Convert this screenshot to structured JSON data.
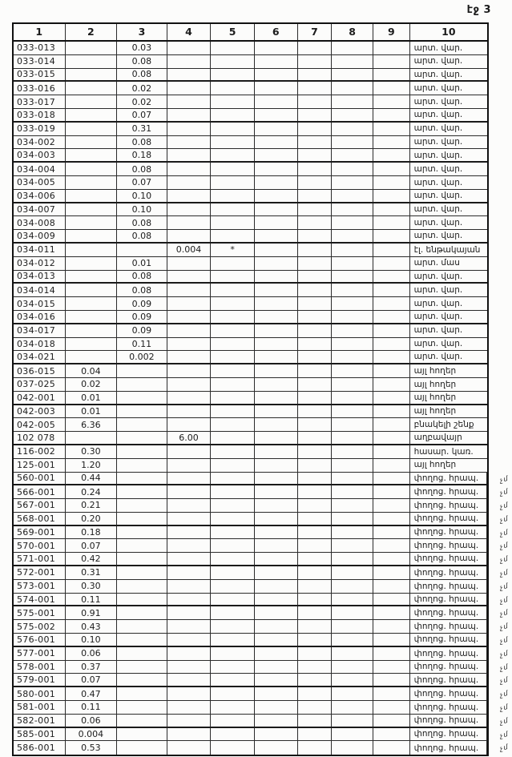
{
  "page": {
    "number_label": "էջ 3"
  },
  "colors": {
    "ink": "#1c1c1c",
    "paper": "#fcfcfb",
    "table_border": "#2b2b2b"
  },
  "table": {
    "headers": [
      "1",
      "2",
      "3",
      "4",
      "5",
      "6",
      "7",
      "8",
      "9",
      "10"
    ],
    "rows": [
      {
        "cells": [
          "033-013",
          "",
          "0.03",
          "",
          "",
          "",
          "",
          "",
          "",
          "արտ. վար."
        ],
        "margin": ""
      },
      {
        "cells": [
          "033-014",
          "",
          "0.08",
          "",
          "",
          "",
          "",
          "",
          "",
          "արտ. վար."
        ],
        "margin": ""
      },
      {
        "cells": [
          "033-015",
          "",
          "0.08",
          "",
          "",
          "",
          "",
          "",
          "",
          "արտ. վար."
        ],
        "margin": ""
      },
      {
        "cells": [
          "033-016",
          "",
          "0.02",
          "",
          "",
          "",
          "",
          "",
          "",
          "արտ. վար."
        ],
        "margin": ""
      },
      {
        "cells": [
          "033-017",
          "",
          "0.02",
          "",
          "",
          "",
          "",
          "",
          "",
          "արտ. վար."
        ],
        "margin": ""
      },
      {
        "cells": [
          "033-018",
          "",
          "0.07",
          "",
          "",
          "",
          "",
          "",
          "",
          "արտ. վար."
        ],
        "margin": ""
      },
      {
        "cells": [
          "033-019",
          "",
          "0.31",
          "",
          "",
          "",
          "",
          "",
          "",
          "արտ. վար."
        ],
        "margin": ""
      },
      {
        "cells": [
          "034-002",
          "",
          "0.08",
          "",
          "",
          "",
          "",
          "",
          "",
          "արտ. վար."
        ],
        "margin": ""
      },
      {
        "cells": [
          "034-003",
          "",
          "0.18",
          "",
          "",
          "",
          "",
          "",
          "",
          "արտ. վար."
        ],
        "margin": ""
      },
      {
        "cells": [
          "034-004",
          "",
          "0.08",
          "",
          "",
          "",
          "",
          "",
          "",
          "արտ. վար."
        ],
        "margin": ""
      },
      {
        "cells": [
          "034-005",
          "",
          "0.07",
          "",
          "",
          "",
          "",
          "",
          "",
          "արտ. վար."
        ],
        "margin": ""
      },
      {
        "cells": [
          "034-006",
          "",
          "0.10",
          "",
          "",
          "",
          "",
          "",
          "",
          "արտ. վար."
        ],
        "margin": ""
      },
      {
        "cells": [
          "034-007",
          "",
          "0.10",
          "",
          "",
          "",
          "",
          "",
          "",
          "արտ. վար."
        ],
        "margin": ""
      },
      {
        "cells": [
          "034-008",
          "",
          "0.08",
          "",
          "",
          "",
          "",
          "",
          "",
          "արտ. վար."
        ],
        "margin": ""
      },
      {
        "cells": [
          "034-009",
          "",
          "0.08",
          "",
          "",
          "",
          "",
          "",
          "",
          "արտ. վար."
        ],
        "margin": ""
      },
      {
        "cells": [
          "034-011",
          "",
          "",
          "0.004",
          "*",
          "",
          "",
          "",
          "",
          "էլ. ենթակայան"
        ],
        "margin": ""
      },
      {
        "cells": [
          "034-012",
          "",
          "0.01",
          "",
          "",
          "",
          "",
          "",
          "",
          "արտ. մաս"
        ],
        "margin": ""
      },
      {
        "cells": [
          "034-013",
          "",
          "0.08",
          "",
          "",
          "",
          "",
          "",
          "",
          "արտ. վար."
        ],
        "margin": ""
      },
      {
        "cells": [
          "034-014",
          "",
          "0.08",
          "",
          "",
          "",
          "",
          "",
          "",
          "արտ. վար."
        ],
        "margin": ""
      },
      {
        "cells": [
          "034-015",
          "",
          "0.09",
          "",
          "",
          "",
          "",
          "",
          "",
          "արտ. վար."
        ],
        "margin": ""
      },
      {
        "cells": [
          "034-016",
          "",
          "0.09",
          "",
          "",
          "",
          "",
          "",
          "",
          "արտ. վար."
        ],
        "margin": ""
      },
      {
        "cells": [
          "034-017",
          "",
          "0.09",
          "",
          "",
          "",
          "",
          "",
          "",
          "արտ. վար."
        ],
        "margin": ""
      },
      {
        "cells": [
          "034-018",
          "",
          "0.11",
          "",
          "",
          "",
          "",
          "",
          "",
          "արտ. վար."
        ],
        "margin": ""
      },
      {
        "cells": [
          "034-021",
          "",
          "0.002",
          "",
          "",
          "",
          "",
          "",
          "",
          "արտ. վար."
        ],
        "margin": ""
      },
      {
        "cells": [
          "036-015",
          "0.04",
          "",
          "",
          "",
          "",
          "",
          "",
          "",
          "այլ հողեր"
        ],
        "margin": ""
      },
      {
        "cells": [
          "037-025",
          "0.02",
          "",
          "",
          "",
          "",
          "",
          "",
          "",
          "այլ հողեր"
        ],
        "margin": ""
      },
      {
        "cells": [
          "042-001",
          "0.01",
          "",
          "",
          "",
          "",
          "",
          "",
          "",
          "այլ հողեր"
        ],
        "margin": ""
      },
      {
        "cells": [
          "042-003",
          "0.01",
          "",
          "",
          "",
          "",
          "",
          "",
          "",
          "այլ հողեր"
        ],
        "margin": ""
      },
      {
        "cells": [
          "042-005",
          "6.36",
          "",
          "",
          "",
          "",
          "",
          "",
          "",
          "բնակելի շենք"
        ],
        "margin": ""
      },
      {
        "cells": [
          "102 078",
          "",
          "",
          "6.00",
          "",
          "",
          "",
          "",
          "",
          "աղբավայր"
        ],
        "margin": ""
      },
      {
        "cells": [
          "116-002",
          "0.30",
          "",
          "",
          "",
          "",
          "",
          "",
          "",
          "հասար. կառ."
        ],
        "margin": ""
      },
      {
        "cells": [
          "125-001",
          "1.20",
          "",
          "",
          "",
          "",
          "",
          "",
          "",
          "այլ հողեր"
        ],
        "margin": ""
      },
      {
        "cells": [
          "560-001",
          "0.44",
          "",
          "",
          "",
          "",
          "",
          "",
          "",
          "փողոց. հրապ."
        ],
        "margin": "չմ"
      },
      {
        "cells": [
          "566-001",
          "0.24",
          "",
          "",
          "",
          "",
          "",
          "",
          "",
          "փողոց. հրապ."
        ],
        "margin": "չմ"
      },
      {
        "cells": [
          "567-001",
          "0.21",
          "",
          "",
          "",
          "",
          "",
          "",
          "",
          "փողոց. հրապ."
        ],
        "margin": "չմ"
      },
      {
        "cells": [
          "568-001",
          "0.20",
          "",
          "",
          "",
          "",
          "",
          "",
          "",
          "փողոց. հրապ."
        ],
        "margin": "չմ"
      },
      {
        "cells": [
          "569-001",
          "0.18",
          "",
          "",
          "",
          "",
          "",
          "",
          "",
          "փողոց. հրապ."
        ],
        "margin": "չմ"
      },
      {
        "cells": [
          "570-001",
          "0.07",
          "",
          "",
          "",
          "",
          "",
          "",
          "",
          "փողոց. հրապ."
        ],
        "margin": "չմ"
      },
      {
        "cells": [
          "571-001",
          "0.42",
          "",
          "",
          "",
          "",
          "",
          "",
          "",
          "փողոց. հրապ."
        ],
        "margin": "չմ"
      },
      {
        "cells": [
          "572-001",
          "0.31",
          "",
          "",
          "",
          "",
          "",
          "",
          "",
          "փողոց. հրապ."
        ],
        "margin": "չմ"
      },
      {
        "cells": [
          "573-001",
          "0.30",
          "",
          "",
          "",
          "",
          "",
          "",
          "",
          "փողոց. հրապ."
        ],
        "margin": "չմ"
      },
      {
        "cells": [
          "574-001",
          "0.11",
          "",
          "",
          "",
          "",
          "",
          "",
          "",
          "փողոց. հրապ."
        ],
        "margin": "չմ"
      },
      {
        "cells": [
          "575-001",
          "0.91",
          "",
          "",
          "",
          "",
          "",
          "",
          "",
          "փողոց. հրապ."
        ],
        "margin": "չմ"
      },
      {
        "cells": [
          "575-002",
          "0.43",
          "",
          "",
          "",
          "",
          "",
          "",
          "",
          "փողոց. հրապ."
        ],
        "margin": "չմ"
      },
      {
        "cells": [
          "576-001",
          "0.10",
          "",
          "",
          "",
          "",
          "",
          "",
          "",
          "փողոց. հրապ."
        ],
        "margin": "չմ"
      },
      {
        "cells": [
          "577-001",
          "0.06",
          "",
          "",
          "",
          "",
          "",
          "",
          "",
          "փողոց. հրապ."
        ],
        "margin": "չմ"
      },
      {
        "cells": [
          "578-001",
          "0.37",
          "",
          "",
          "",
          "",
          "",
          "",
          "",
          "փողոց. հրապ."
        ],
        "margin": "չմ"
      },
      {
        "cells": [
          "579-001",
          "0.07",
          "",
          "",
          "",
          "",
          "",
          "",
          "",
          "փողոց. հրապ."
        ],
        "margin": "չմ"
      },
      {
        "cells": [
          "580-001",
          "0.47",
          "",
          "",
          "",
          "",
          "",
          "",
          "",
          "փողոց. հրապ."
        ],
        "margin": "չմ"
      },
      {
        "cells": [
          "581-001",
          "0.11",
          "",
          "",
          "",
          "",
          "",
          "",
          "",
          "փողոց. հրապ."
        ],
        "margin": "չմ"
      },
      {
        "cells": [
          "582-001",
          "0.06",
          "",
          "",
          "",
          "",
          "",
          "",
          "",
          "փողոց. հրապ."
        ],
        "margin": "չմ"
      },
      {
        "cells": [
          "585-001",
          "0.004",
          "",
          "",
          "",
          "",
          "",
          "",
          "",
          "փողոց. հրապ."
        ],
        "margin": "չմ"
      },
      {
        "cells": [
          "586-001",
          "0.53",
          "",
          "",
          "",
          "",
          "",
          "",
          "",
          "փողոց. հրապ."
        ],
        "margin": "չմ"
      }
    ]
  }
}
